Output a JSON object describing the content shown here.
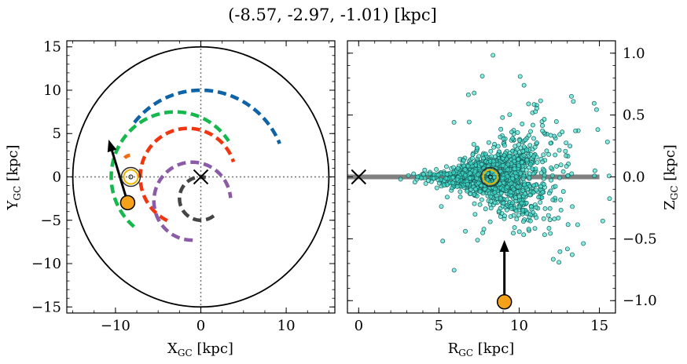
{
  "figure": {
    "title": "(-8.57, -2.97, -1.01) [kpc]"
  },
  "chart_data": [
    {
      "type": "line",
      "panel": "left",
      "xlabel": "X$_{GC}$ [kpc]",
      "xlabel_main": "X",
      "xlabel_sub": "GC",
      "xlabel_unit": " [kpc]",
      "ylabel_main": "Y",
      "ylabel_sub": "GC",
      "ylabel_unit": " [kpc]",
      "xlim": [
        -15.7,
        15.7
      ],
      "ylim": [
        -15.7,
        15.7
      ],
      "xticks": [
        -10,
        0,
        10
      ],
      "yticks": [
        -15,
        -10,
        -5,
        0,
        5,
        10,
        15
      ],
      "xticklabels": [
        "−10",
        "0",
        "10"
      ],
      "yticklabels": [
        "−15",
        "−10",
        "−5",
        "0",
        "5",
        "10",
        "15"
      ],
      "boundary_circle_radius": 15,
      "galactic_center": [
        0,
        0
      ],
      "sun_position": [
        -8.2,
        0
      ],
      "target_position": [
        -8.57,
        -2.97
      ],
      "arrow": {
        "from": [
          -8.57,
          -2.97
        ],
        "to": [
          -10.8,
          4.3
        ]
      },
      "series": [
        {
          "color": "#0d63a5",
          "radius": 10.0,
          "phi_start": 3.82,
          "phi_end": 5.89
        },
        {
          "color": "#16b84e",
          "radius": 7.5,
          "phi_start": 2.27,
          "phi_end": 5.7
        },
        {
          "color": "#f26a11",
          "radius": 1.0,
          "phi_start": 3.9,
          "phi_end": 4.6
        },
        {
          "color": "#f1360f",
          "radius": 5.6,
          "phi_start": 2.02,
          "phi_end": 5.97
        },
        {
          "color": "#8c5ba8",
          "radius": 4.5,
          "phi_start": 1.56,
          "phi_end": 6.2
        },
        {
          "color": "#454545",
          "radius": 2.5,
          "phi_start": 0.92,
          "phi_end": 4.95
        }
      ],
      "series_center_offsets": [
        [
          0,
          0
        ],
        [
          -3.0,
          0
        ],
        [
          -8.2,
          1.5
        ],
        [
          -1.5,
          0
        ],
        [
          -1.0,
          -2.8
        ],
        [
          0,
          -2.5
        ]
      ]
    },
    {
      "type": "scatter",
      "panel": "right",
      "xlabel_main": "R",
      "xlabel_sub": "GC",
      "xlabel_unit": " [kpc]",
      "ylabel_main": "Z",
      "ylabel_sub": "GC",
      "ylabel_unit": " [kpc]",
      "xlim": [
        -0.7,
        16.0
      ],
      "ylim": [
        -1.1,
        1.1
      ],
      "xticks": [
        0,
        5,
        10,
        15
      ],
      "yticks": [
        -1.0,
        -0.5,
        0.0,
        0.5,
        1.0
      ],
      "xticklabels": [
        "0",
        "5",
        "10",
        "15"
      ],
      "yticklabels": [
        "−1.0",
        "−0.5",
        "0.0",
        "0.5",
        "1.0"
      ],
      "disk_line": {
        "x": [
          -0.7,
          15.0
        ],
        "y": 0.0
      },
      "galactic_center": [
        0,
        0
      ],
      "sun_position": [
        8.2,
        0
      ],
      "target_position": [
        9.08,
        -1.01
      ],
      "arrow": {
        "from": [
          9.08,
          -1.01
        ],
        "to": [
          9.08,
          -0.51
        ]
      },
      "point_color": "#40e0d0",
      "n_points": 1400
    }
  ]
}
